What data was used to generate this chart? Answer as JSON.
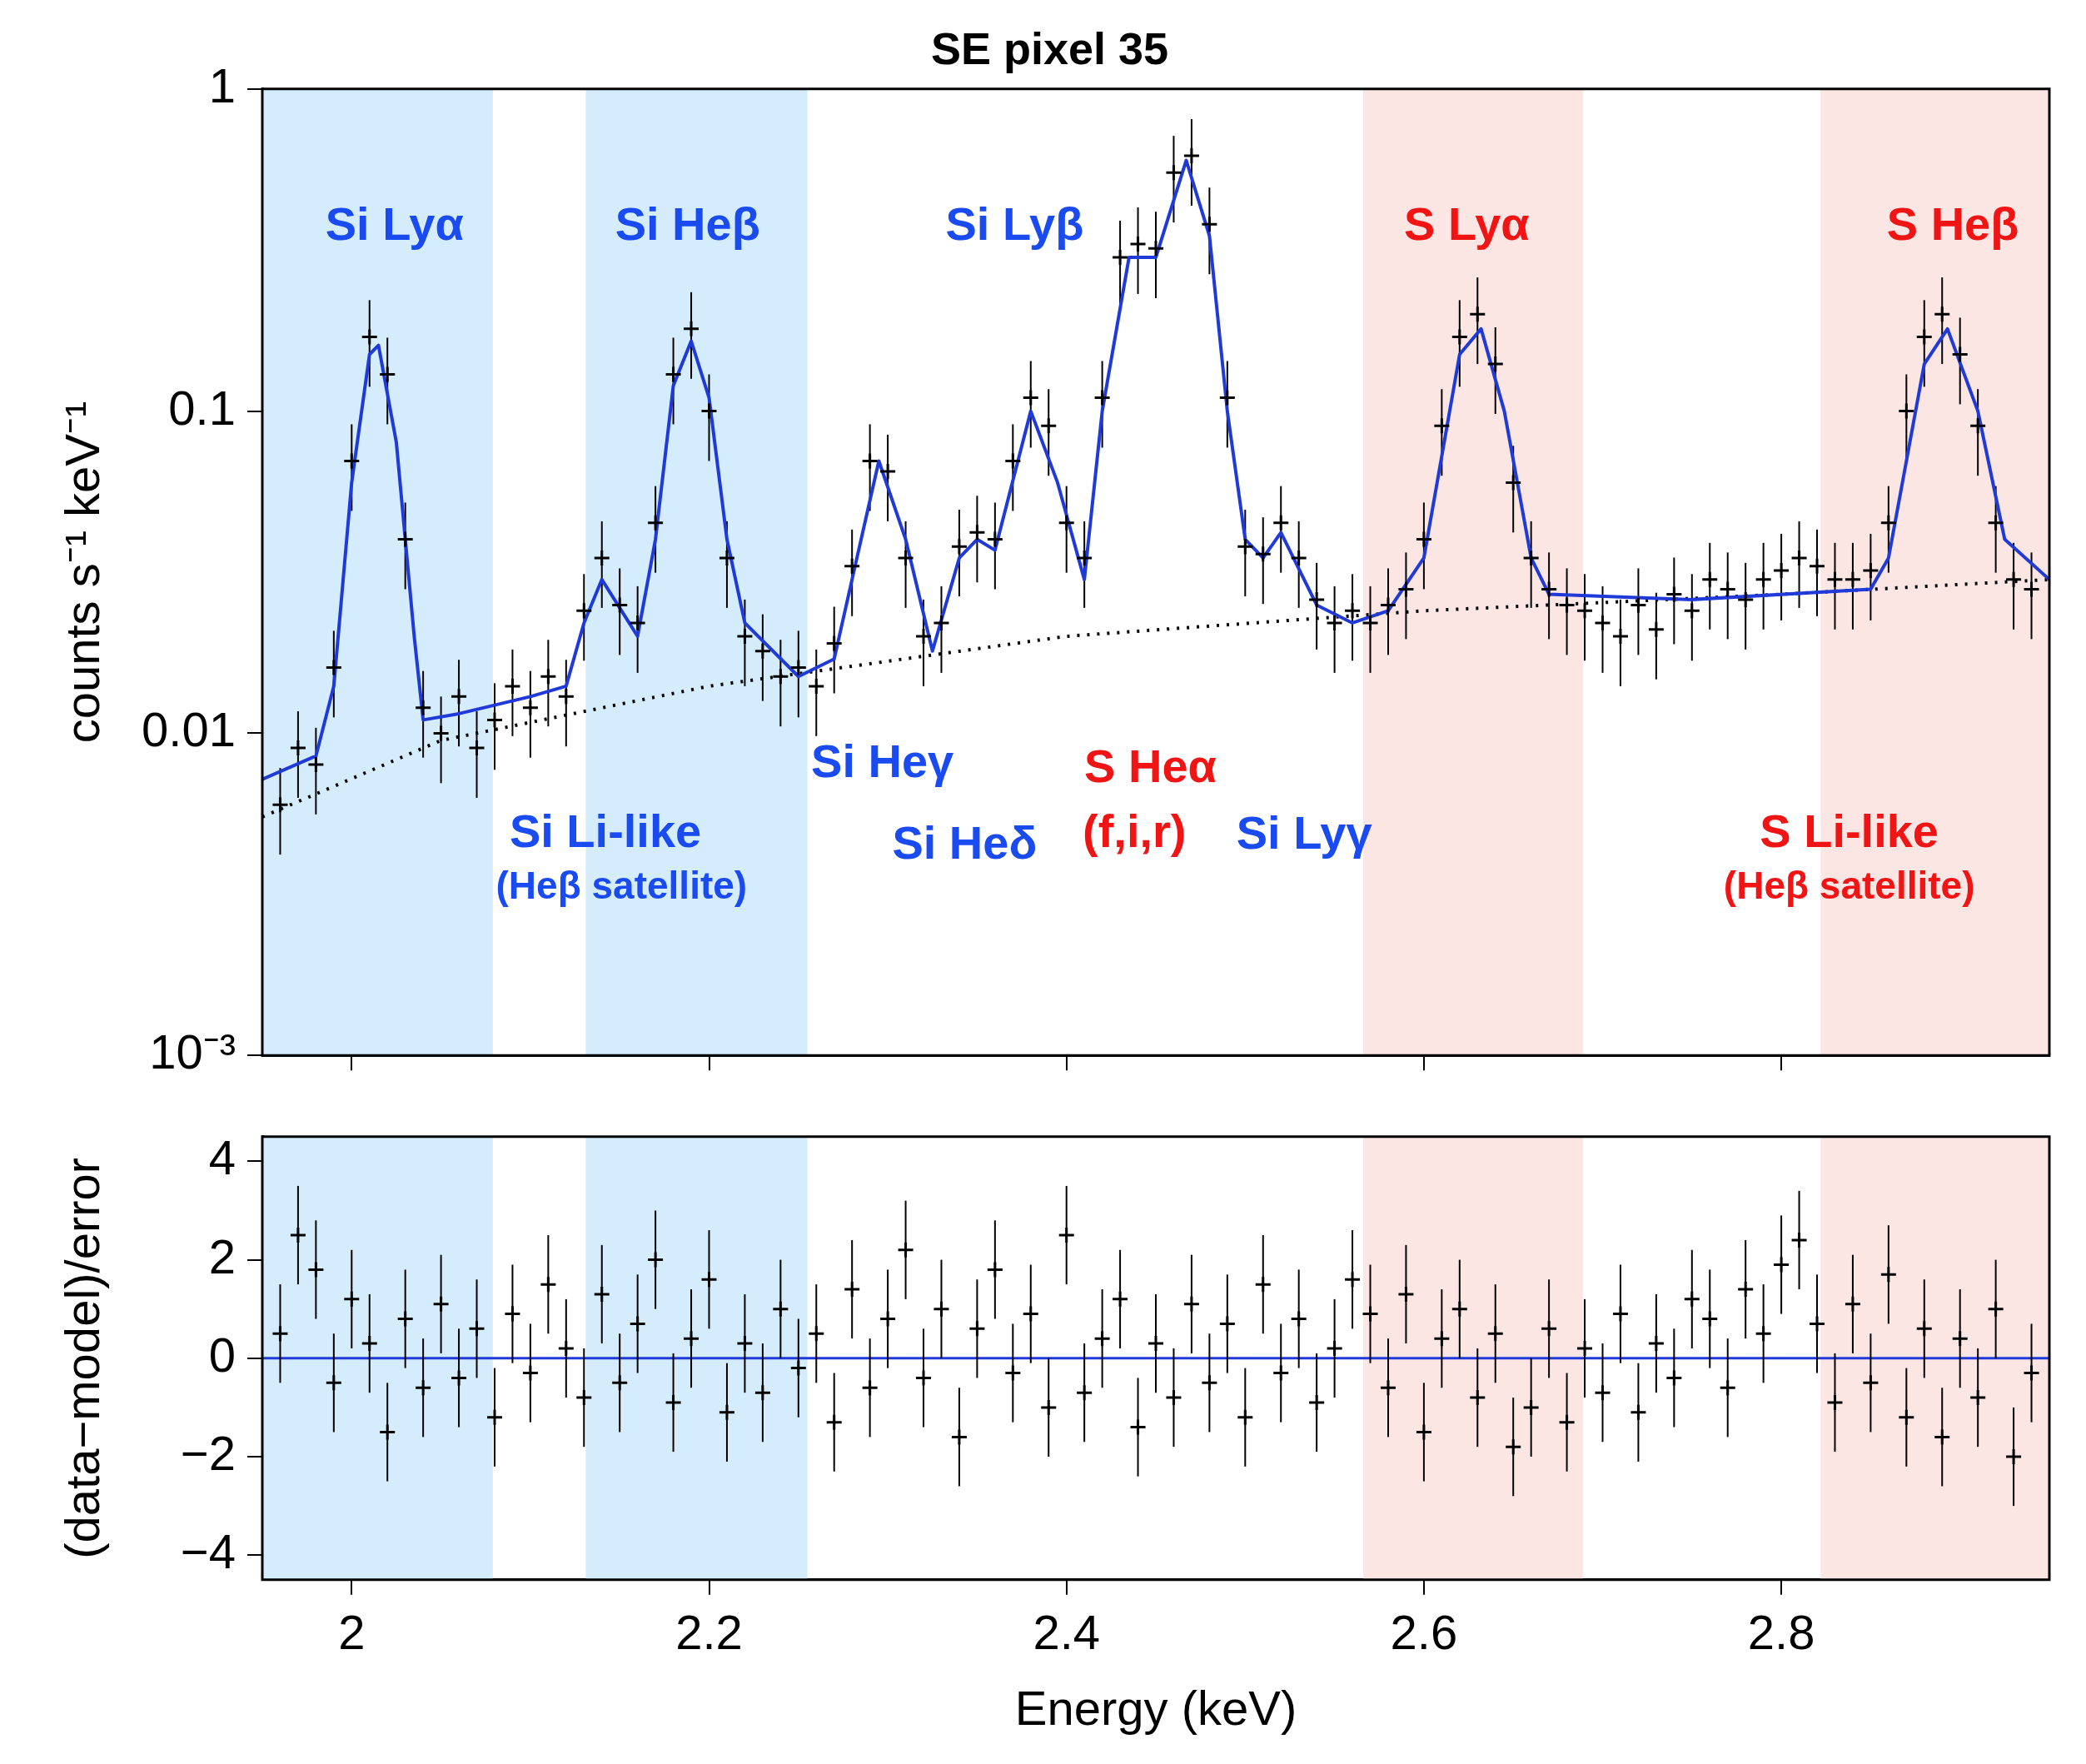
{
  "chart_data": [
    {
      "type": "scatter",
      "title": "SE pixel 35",
      "ylabel": "counts s⁻¹ keV⁻¹",
      "log": "y",
      "grid": false,
      "legend": false,
      "tick_labels": "y",
      "marker": "cross",
      "xlim": [
        1.95,
        2.95
      ],
      "xticks": [
        {
          "value": 2,
          "label": null
        },
        {
          "value": 2.2,
          "label": null
        },
        {
          "value": 2.4,
          "label": null
        },
        {
          "value": 2.6,
          "label": null
        },
        {
          "value": 2.8,
          "label": null
        }
      ],
      "ylim": [
        0.001,
        1
      ],
      "yticks": [
        {
          "value": 0.001,
          "label": "10⁻³"
        },
        0.01,
        0.1,
        1
      ],
      "bands": [
        {
          "axis": "x",
          "from": 1.95,
          "to": 2.079,
          "color": "#d4ecfb"
        },
        {
          "axis": "x",
          "from": 2.131,
          "to": 2.255,
          "color": "#d4ecfb"
        },
        {
          "axis": "x",
          "from": 2.566,
          "to": 2.689,
          "color": "#fbe6e4"
        },
        {
          "axis": "x",
          "from": 2.822,
          "to": 2.95,
          "color": "#fbe6e4"
        }
      ],
      "annotations": [
        "Si Lyα",
        "Si Heβ",
        "Si Lyβ",
        "S Lyα",
        "S Heβ",
        "Si Heγ",
        "Si Heδ",
        "S Heα",
        "(f,i,r)",
        "Si Lyγ",
        "Si Li-like",
        "(Heβ satellite)",
        "S Li-like",
        "(Heβ satellite)"
      ],
      "series": [
        {
          "color": "#000000",
          "x": [
            1.96,
            1.97,
            1.98,
            1.99,
            2.0,
            2.01,
            2.02,
            2.03,
            2.04,
            2.05,
            2.06,
            2.07,
            2.08,
            2.09,
            2.1,
            2.11,
            2.12,
            2.13,
            2.14,
            2.15,
            2.16,
            2.17,
            2.18,
            2.19,
            2.2,
            2.21,
            2.22,
            2.23,
            2.24,
            2.25,
            2.26,
            2.27,
            2.28,
            2.29,
            2.3,
            2.31,
            2.32,
            2.33,
            2.34,
            2.35,
            2.36,
            2.37,
            2.38,
            2.39,
            2.4,
            2.41,
            2.42,
            2.43,
            2.44,
            2.45,
            2.46,
            2.47,
            2.48,
            2.49,
            2.5,
            2.51,
            2.52,
            2.53,
            2.54,
            2.55,
            2.56,
            2.57,
            2.58,
            2.59,
            2.6,
            2.61,
            2.62,
            2.63,
            2.64,
            2.65,
            2.66,
            2.67,
            2.68,
            2.69,
            2.7,
            2.71,
            2.72,
            2.73,
            2.74,
            2.75,
            2.76,
            2.77,
            2.78,
            2.79,
            2.8,
            2.81,
            2.82,
            2.83,
            2.84,
            2.85,
            2.86,
            2.87,
            2.88,
            2.89,
            2.9,
            2.91,
            2.92,
            2.93,
            2.94
          ],
          "values": [
            0.006,
            0.009,
            0.008,
            0.016,
            0.07,
            0.17,
            0.13,
            0.04,
            0.012,
            0.01,
            0.013,
            0.009,
            0.011,
            0.014,
            0.012,
            0.015,
            0.013,
            0.024,
            0.035,
            0.025,
            0.022,
            0.045,
            0.13,
            0.18,
            0.1,
            0.035,
            0.02,
            0.018,
            0.015,
            0.016,
            0.014,
            0.019,
            0.033,
            0.07,
            0.065,
            0.035,
            0.02,
            0.022,
            0.038,
            0.042,
            0.04,
            0.07,
            0.11,
            0.09,
            0.045,
            0.035,
            0.11,
            0.3,
            0.33,
            0.32,
            0.55,
            0.62,
            0.38,
            0.11,
            0.038,
            0.036,
            0.045,
            0.035,
            0.026,
            0.022,
            0.024,
            0.022,
            0.025,
            0.028,
            0.04,
            0.09,
            0.17,
            0.2,
            0.14,
            0.06,
            0.035,
            0.028,
            0.025,
            0.024,
            0.022,
            0.02,
            0.025,
            0.021,
            0.027,
            0.024,
            0.03,
            0.028,
            0.026,
            0.03,
            0.032,
            0.035,
            0.033,
            0.03,
            0.03,
            0.032,
            0.045,
            0.1,
            0.17,
            0.2,
            0.15,
            0.09,
            0.045,
            0.03,
            0.028
          ],
          "errors": [
            0.0018,
            0.0027,
            0.0024,
            0.0048,
            0.021,
            0.051,
            0.039,
            0.012,
            0.0036,
            0.003,
            0.0039,
            0.0027,
            0.0033,
            0.0042,
            0.0036,
            0.0045,
            0.0039,
            0.0072,
            0.0105,
            0.0075,
            0.0066,
            0.0135,
            0.039,
            0.054,
            0.03,
            0.0105,
            0.006,
            0.0054,
            0.0045,
            0.0048,
            0.0042,
            0.0057,
            0.0099,
            0.021,
            0.0195,
            0.0105,
            0.006,
            0.0066,
            0.0114,
            0.0126,
            0.012,
            0.021,
            0.033,
            0.027,
            0.0135,
            0.0105,
            0.033,
            0.09,
            0.099,
            0.096,
            0.165,
            0.186,
            0.114,
            0.033,
            0.0114,
            0.0108,
            0.0135,
            0.0105,
            0.0078,
            0.0066,
            0.0072,
            0.0066,
            0.0075,
            0.0084,
            0.012,
            0.027,
            0.051,
            0.06,
            0.042,
            0.018,
            0.0105,
            0.0084,
            0.0075,
            0.0072,
            0.0066,
            0.006,
            0.0075,
            0.0063,
            0.0081,
            0.0072,
            0.009,
            0.0084,
            0.0078,
            0.009,
            0.0096,
            0.0105,
            0.0099,
            0.009,
            0.009,
            0.0096,
            0.0135,
            0.03,
            0.051,
            0.06,
            0.045,
            0.027,
            0.0135,
            0.009,
            0.0084
          ]
        },
        {
          "type": "line",
          "marker": "none",
          "color": "#1f3ad8",
          "line_style": "solid",
          "x": [
            1.95,
            1.98,
            1.99,
            2.0,
            2.01,
            2.015,
            2.025,
            2.035,
            2.04,
            2.06,
            2.1,
            2.12,
            2.13,
            2.14,
            2.16,
            2.17,
            2.18,
            2.19,
            2.2,
            2.21,
            2.22,
            2.25,
            2.27,
            2.28,
            2.295,
            2.31,
            2.325,
            2.34,
            2.35,
            2.36,
            2.38,
            2.395,
            2.41,
            2.42,
            2.435,
            2.45,
            2.467,
            2.48,
            2.49,
            2.5,
            2.51,
            2.52,
            2.54,
            2.56,
            2.58,
            2.6,
            2.62,
            2.632,
            2.645,
            2.66,
            2.67,
            2.75,
            2.85,
            2.86,
            2.88,
            2.893,
            2.91,
            2.925,
            2.95
          ],
          "values": [
            0.0072,
            0.0085,
            0.014,
            0.06,
            0.15,
            0.16,
            0.08,
            0.02,
            0.011,
            0.0115,
            0.013,
            0.014,
            0.022,
            0.03,
            0.02,
            0.04,
            0.12,
            0.165,
            0.11,
            0.04,
            0.022,
            0.015,
            0.017,
            0.03,
            0.07,
            0.04,
            0.018,
            0.035,
            0.04,
            0.037,
            0.1,
            0.06,
            0.03,
            0.1,
            0.3,
            0.3,
            0.6,
            0.35,
            0.1,
            0.04,
            0.035,
            0.042,
            0.025,
            0.022,
            0.024,
            0.035,
            0.15,
            0.18,
            0.1,
            0.035,
            0.027,
            0.026,
            0.028,
            0.035,
            0.14,
            0.18,
            0.1,
            0.04,
            0.03
          ]
        },
        {
          "type": "line",
          "marker": "none",
          "color": "#000000",
          "line_style": "dotted",
          "x": [
            1.95,
            2.05,
            2.2,
            2.4,
            2.6,
            2.8,
            2.95
          ],
          "values": [
            0.0055,
            0.0095,
            0.014,
            0.02,
            0.024,
            0.027,
            0.03
          ]
        }
      ]
    },
    {
      "type": "scatter",
      "xlabel": "Energy (keV)",
      "ylabel": "(data−model)/error",
      "grid": false,
      "legend": false,
      "marker": "cross",
      "xlim": [
        1.95,
        2.95
      ],
      "xticks": [
        2,
        2.2,
        2.4,
        2.6,
        2.8
      ],
      "ylim": [
        -4.5,
        4.5
      ],
      "yticks": [
        {
          "value": -4,
          "label": "−4"
        },
        {
          "value": -2,
          "label": "−2"
        },
        0,
        2,
        4
      ],
      "bands": [
        {
          "axis": "x",
          "from": 1.95,
          "to": 2.079,
          "color": "#d4ecfb"
        },
        {
          "axis": "x",
          "from": 2.131,
          "to": 2.255,
          "color": "#d4ecfb"
        },
        {
          "axis": "x",
          "from": 2.566,
          "to": 2.689,
          "color": "#fbe6e4"
        },
        {
          "axis": "x",
          "from": 2.822,
          "to": 2.95,
          "color": "#fbe6e4"
        }
      ],
      "ref_lines": [
        {
          "axis": "y",
          "value": 0,
          "color": "#1f3ad8"
        }
      ],
      "series": [
        {
          "color": "#000000",
          "x": [
            1.96,
            1.97,
            1.98,
            1.99,
            2.0,
            2.01,
            2.02,
            2.03,
            2.04,
            2.05,
            2.06,
            2.07,
            2.08,
            2.09,
            2.1,
            2.11,
            2.12,
            2.13,
            2.14,
            2.15,
            2.16,
            2.17,
            2.18,
            2.19,
            2.2,
            2.21,
            2.22,
            2.23,
            2.24,
            2.25,
            2.26,
            2.27,
            2.28,
            2.29,
            2.3,
            2.31,
            2.32,
            2.33,
            2.34,
            2.35,
            2.36,
            2.37,
            2.38,
            2.39,
            2.4,
            2.41,
            2.42,
            2.43,
            2.44,
            2.45,
            2.46,
            2.47,
            2.48,
            2.49,
            2.5,
            2.51,
            2.52,
            2.53,
            2.54,
            2.55,
            2.56,
            2.57,
            2.58,
            2.59,
            2.6,
            2.61,
            2.62,
            2.63,
            2.64,
            2.65,
            2.66,
            2.67,
            2.68,
            2.69,
            2.7,
            2.71,
            2.72,
            2.73,
            2.74,
            2.75,
            2.76,
            2.77,
            2.78,
            2.79,
            2.8,
            2.81,
            2.82,
            2.83,
            2.84,
            2.85,
            2.86,
            2.87,
            2.88,
            2.89,
            2.9,
            2.91,
            2.92,
            2.93,
            2.94
          ],
          "values": [
            0.5,
            2.5,
            1.8,
            -0.5,
            1.2,
            0.3,
            -1.5,
            0.8,
            -0.6,
            1.1,
            -0.4,
            0.6,
            -1.2,
            0.9,
            -0.3,
            1.5,
            0.2,
            -0.8,
            1.3,
            -0.5,
            0.7,
            2.0,
            -0.9,
            0.4,
            1.6,
            -1.1,
            0.3,
            -0.7,
            1.0,
            -0.2,
            0.5,
            -1.3,
            1.4,
            -0.6,
            0.8,
            2.2,
            -0.4,
            1.0,
            -1.6,
            0.6,
            1.8,
            -0.3,
            0.9,
            -1.0,
            2.5,
            -0.7,
            0.4,
            1.2,
            -1.4,
            0.3,
            -0.8,
            1.1,
            -0.5,
            0.7,
            -1.2,
            1.5,
            -0.3,
            0.8,
            -0.9,
            0.2,
            1.6,
            0.9,
            -0.6,
            1.3,
            -1.5,
            0.4,
            1.0,
            -0.8,
            0.5,
            -1.8,
            -1.0,
            0.6,
            -1.3,
            0.2,
            -0.7,
            0.9,
            -1.1,
            0.3,
            -0.4,
            1.2,
            0.8,
            -0.6,
            1.4,
            0.5,
            1.9,
            2.4,
            0.7,
            -0.9,
            1.1,
            -0.5,
            1.7,
            -1.2,
            0.6,
            -1.6,
            0.4,
            -0.8,
            1.0,
            -2.0,
            -0.3
          ],
          "errors": [
            1,
            1,
            1,
            1,
            1,
            1,
            1,
            1,
            1,
            1,
            1,
            1,
            1,
            1,
            1,
            1,
            1,
            1,
            1,
            1,
            1,
            1,
            1,
            1,
            1,
            1,
            1,
            1,
            1,
            1,
            1,
            1,
            1,
            1,
            1,
            1,
            1,
            1,
            1,
            1,
            1,
            1,
            1,
            1,
            1,
            1,
            1,
            1,
            1,
            1,
            1,
            1,
            1,
            1,
            1,
            1,
            1,
            1,
            1,
            1,
            1,
            1,
            1,
            1,
            1,
            1,
            1,
            1,
            1,
            1,
            1,
            1,
            1,
            1,
            1,
            1,
            1,
            1,
            1,
            1,
            1,
            1,
            1,
            1,
            1,
            1,
            1,
            1,
            1,
            1,
            1,
            1,
            1,
            1,
            1,
            1,
            1,
            1,
            1
          ]
        }
      ]
    }
  ]
}
